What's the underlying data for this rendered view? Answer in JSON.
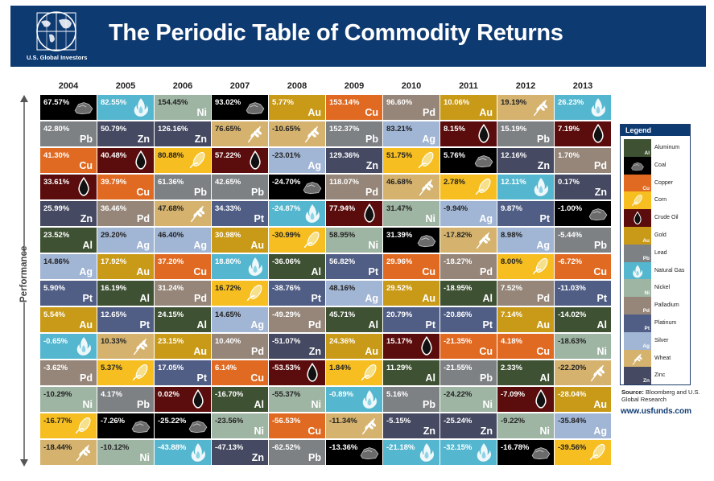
{
  "header": {
    "logo_text": "U.S. Global Investors",
    "title": "The Periodic Table of Commodity Returns"
  },
  "axis_label": "Performance",
  "legend": {
    "title": "Legend",
    "items": [
      {
        "key": "Al",
        "label": "Aluminum",
        "color": "#3e5132",
        "icon": ""
      },
      {
        "key": "Coal",
        "label": "Coal",
        "color": "#000000",
        "icon": "coal-icon"
      },
      {
        "key": "Cu",
        "label": "Copper",
        "color": "#e06a22",
        "icon": ""
      },
      {
        "key": "Corn",
        "label": "Corn",
        "color": "#f6be21",
        "icon": "corn-icon"
      },
      {
        "key": "Oil",
        "label": "Crude Oil",
        "color": "#5b0c0c",
        "icon": "oil-drop-icon"
      },
      {
        "key": "Au",
        "label": "Gold",
        "color": "#c99a17",
        "icon": ""
      },
      {
        "key": "Pb",
        "label": "Lead",
        "color": "#7e8184",
        "icon": ""
      },
      {
        "key": "Gas",
        "label": "Natural Gas",
        "color": "#55b7cf",
        "icon": "flame-icon"
      },
      {
        "key": "Ni",
        "label": "Nickel",
        "color": "#9fb5a3",
        "icon": ""
      },
      {
        "key": "Pd",
        "label": "Palladium",
        "color": "#968679",
        "icon": ""
      },
      {
        "key": "Pt",
        "label": "Platinum",
        "color": "#505e86",
        "icon": ""
      },
      {
        "key": "Ag",
        "label": "Silver",
        "color": "#a1b5d4",
        "icon": ""
      },
      {
        "key": "Wheat",
        "label": "Wheat",
        "color": "#d5b36f",
        "icon": "wheat-icon"
      },
      {
        "key": "Zn",
        "label": "Zinc",
        "color": "#454961",
        "icon": ""
      }
    ]
  },
  "source_label": "Source:",
  "source_text": "Bloomberg and U.S. Global Research",
  "url": "www.usfunds.com",
  "chart_data": {
    "type": "table",
    "title": "The Periodic Table of Commodity Returns",
    "ylabel": "Performance",
    "years": [
      "2004",
      "2005",
      "2006",
      "2007",
      "2008",
      "2009",
      "2010",
      "2011",
      "2012",
      "2013"
    ],
    "columns": [
      {
        "year": "2004",
        "cells": [
          {
            "v": "67.57%",
            "c": "Coal"
          },
          {
            "v": "42.80%",
            "c": "Pb"
          },
          {
            "v": "41.30%",
            "c": "Cu"
          },
          {
            "v": "33.61%",
            "c": "Oil"
          },
          {
            "v": "25.99%",
            "c": "Zn"
          },
          {
            "v": "23.52%",
            "c": "Al"
          },
          {
            "v": "14.86%",
            "c": "Ag"
          },
          {
            "v": "5.90%",
            "c": "Pt"
          },
          {
            "v": "5.54%",
            "c": "Au"
          },
          {
            "v": "-0.65%",
            "c": "Gas"
          },
          {
            "v": "-3.62%",
            "c": "Pd"
          },
          {
            "v": "-10.29%",
            "c": "Ni"
          },
          {
            "v": "-16.77%",
            "c": "Corn"
          },
          {
            "v": "-18.44%",
            "c": "Wheat"
          }
        ]
      },
      {
        "year": "2005",
        "cells": [
          {
            "v": "82.55%",
            "c": "Gas"
          },
          {
            "v": "50.79%",
            "c": "Zn"
          },
          {
            "v": "40.48%",
            "c": "Oil"
          },
          {
            "v": "39.79%",
            "c": "Cu"
          },
          {
            "v": "36.46%",
            "c": "Pd"
          },
          {
            "v": "29.20%",
            "c": "Ag"
          },
          {
            "v": "17.92%",
            "c": "Au"
          },
          {
            "v": "16.19%",
            "c": "Al"
          },
          {
            "v": "12.65%",
            "c": "Pt"
          },
          {
            "v": "10.33%",
            "c": "Wheat"
          },
          {
            "v": "5.37%",
            "c": "Corn"
          },
          {
            "v": "4.17%",
            "c": "Pb"
          },
          {
            "v": "-7.26%",
            "c": "Coal"
          },
          {
            "v": "-10.12%",
            "c": "Ni"
          }
        ]
      },
      {
        "year": "2006",
        "cells": [
          {
            "v": "154.45%",
            "c": "Ni"
          },
          {
            "v": "126.16%",
            "c": "Zn"
          },
          {
            "v": "80.88%",
            "c": "Corn"
          },
          {
            "v": "61.36%",
            "c": "Pb"
          },
          {
            "v": "47.68%",
            "c": "Wheat"
          },
          {
            "v": "46.40%",
            "c": "Ag"
          },
          {
            "v": "37.20%",
            "c": "Cu"
          },
          {
            "v": "31.24%",
            "c": "Pd"
          },
          {
            "v": "24.15%",
            "c": "Al"
          },
          {
            "v": "23.15%",
            "c": "Au"
          },
          {
            "v": "17.05%",
            "c": "Pt"
          },
          {
            "v": "0.02%",
            "c": "Oil"
          },
          {
            "v": "-25.22%",
            "c": "Coal"
          },
          {
            "v": "-43.88%",
            "c": "Gas"
          }
        ]
      },
      {
        "year": "2007",
        "cells": [
          {
            "v": "93.02%",
            "c": "Coal"
          },
          {
            "v": "76.65%",
            "c": "Wheat"
          },
          {
            "v": "57.22%",
            "c": "Oil"
          },
          {
            "v": "42.65%",
            "c": "Pb"
          },
          {
            "v": "34.33%",
            "c": "Pt"
          },
          {
            "v": "30.98%",
            "c": "Au"
          },
          {
            "v": "18.80%",
            "c": "Gas"
          },
          {
            "v": "16.72%",
            "c": "Corn"
          },
          {
            "v": "14.65%",
            "c": "Ag"
          },
          {
            "v": "10.40%",
            "c": "Pd"
          },
          {
            "v": "6.14%",
            "c": "Cu"
          },
          {
            "v": "-16.70%",
            "c": "Al"
          },
          {
            "v": "-23.56%",
            "c": "Ni"
          },
          {
            "v": "-47.13%",
            "c": "Zn"
          }
        ]
      },
      {
        "year": "2008",
        "cells": [
          {
            "v": "5.77%",
            "c": "Au"
          },
          {
            "v": "-10.65%",
            "c": "Wheat"
          },
          {
            "v": "-23.01%",
            "c": "Ag"
          },
          {
            "v": "-24.70%",
            "c": "Coal"
          },
          {
            "v": "-24.87%",
            "c": "Gas"
          },
          {
            "v": "-30.99%",
            "c": "Corn"
          },
          {
            "v": "-36.06%",
            "c": "Al"
          },
          {
            "v": "-38.76%",
            "c": "Pt"
          },
          {
            "v": "-49.29%",
            "c": "Pd"
          },
          {
            "v": "-51.07%",
            "c": "Zn"
          },
          {
            "v": "-53.53%",
            "c": "Oil"
          },
          {
            "v": "-55.37%",
            "c": "Ni"
          },
          {
            "v": "-56.53%",
            "c": "Cu"
          },
          {
            "v": "-62.52%",
            "c": "Pb"
          }
        ]
      },
      {
        "year": "2009",
        "cells": [
          {
            "v": "153.14%",
            "c": "Cu"
          },
          {
            "v": "152.37%",
            "c": "Pb"
          },
          {
            "v": "129.36%",
            "c": "Zn"
          },
          {
            "v": "118.07%",
            "c": "Pd"
          },
          {
            "v": "77.94%",
            "c": "Oil"
          },
          {
            "v": "58.95%",
            "c": "Ni"
          },
          {
            "v": "56.82%",
            "c": "Pt"
          },
          {
            "v": "48.16%",
            "c": "Ag"
          },
          {
            "v": "45.71%",
            "c": "Al"
          },
          {
            "v": "24.36%",
            "c": "Au"
          },
          {
            "v": "1.84%",
            "c": "Corn"
          },
          {
            "v": "-0.89%",
            "c": "Gas"
          },
          {
            "v": "-11.34%",
            "c": "Wheat"
          },
          {
            "v": "-13.36%",
            "c": "Coal"
          }
        ]
      },
      {
        "year": "2010",
        "cells": [
          {
            "v": "96.60%",
            "c": "Pd"
          },
          {
            "v": "83.21%",
            "c": "Ag"
          },
          {
            "v": "51.75%",
            "c": "Corn"
          },
          {
            "v": "46.68%",
            "c": "Wheat"
          },
          {
            "v": "31.47%",
            "c": "Ni"
          },
          {
            "v": "31.39%",
            "c": "Coal"
          },
          {
            "v": "29.96%",
            "c": "Cu"
          },
          {
            "v": "29.52%",
            "c": "Au"
          },
          {
            "v": "20.79%",
            "c": "Pt"
          },
          {
            "v": "15.17%",
            "c": "Oil"
          },
          {
            "v": "11.29%",
            "c": "Al"
          },
          {
            "v": "5.16%",
            "c": "Pb"
          },
          {
            "v": "-5.15%",
            "c": "Zn"
          },
          {
            "v": "-21.18%",
            "c": "Gas"
          }
        ]
      },
      {
        "year": "2011",
        "cells": [
          {
            "v": "10.06%",
            "c": "Au"
          },
          {
            "v": "8.15%",
            "c": "Oil"
          },
          {
            "v": "5.76%",
            "c": "Coal"
          },
          {
            "v": "2.78%",
            "c": "Corn"
          },
          {
            "v": "-9.94%",
            "c": "Ag"
          },
          {
            "v": "-17.82%",
            "c": "Wheat"
          },
          {
            "v": "-18.27%",
            "c": "Pd"
          },
          {
            "v": "-18.95%",
            "c": "Al"
          },
          {
            "v": "-20.86%",
            "c": "Pt"
          },
          {
            "v": "-21.35%",
            "c": "Cu"
          },
          {
            "v": "-21.55%",
            "c": "Pb"
          },
          {
            "v": "-24.22%",
            "c": "Ni"
          },
          {
            "v": "-25.24%",
            "c": "Zn"
          },
          {
            "v": "-32.15%",
            "c": "Gas"
          }
        ]
      },
      {
        "year": "2012",
        "cells": [
          {
            "v": "19.19%",
            "c": "Wheat"
          },
          {
            "v": "15.19%",
            "c": "Pb"
          },
          {
            "v": "12.16%",
            "c": "Zn"
          },
          {
            "v": "12.11%",
            "c": "Gas"
          },
          {
            "v": "9.87%",
            "c": "Pt"
          },
          {
            "v": "8.98%",
            "c": "Ag"
          },
          {
            "v": "8.00%",
            "c": "Corn"
          },
          {
            "v": "7.52%",
            "c": "Pd"
          },
          {
            "v": "7.14%",
            "c": "Au"
          },
          {
            "v": "4.18%",
            "c": "Cu"
          },
          {
            "v": "2.33%",
            "c": "Al"
          },
          {
            "v": "-7.09%",
            "c": "Oil"
          },
          {
            "v": "-9.22%",
            "c": "Ni"
          },
          {
            "v": "-16.78%",
            "c": "Coal"
          }
        ]
      },
      {
        "year": "2013",
        "cells": [
          {
            "v": "26.23%",
            "c": "Gas"
          },
          {
            "v": "7.19%",
            "c": "Oil"
          },
          {
            "v": "1.70%",
            "c": "Pd"
          },
          {
            "v": "0.17%",
            "c": "Zn"
          },
          {
            "v": "-1.00%",
            "c": "Coal"
          },
          {
            "v": "-5.44%",
            "c": "Pb"
          },
          {
            "v": "-6.72%",
            "c": "Cu"
          },
          {
            "v": "-11.03%",
            "c": "Pt"
          },
          {
            "v": "-14.02%",
            "c": "Al"
          },
          {
            "v": "-18.63%",
            "c": "Ni"
          },
          {
            "v": "-22.20%",
            "c": "Wheat"
          },
          {
            "v": "-28.04%",
            "c": "Au"
          },
          {
            "v": "-35.84%",
            "c": "Ag"
          },
          {
            "v": "-39.56%",
            "c": "Corn"
          }
        ]
      }
    ]
  }
}
